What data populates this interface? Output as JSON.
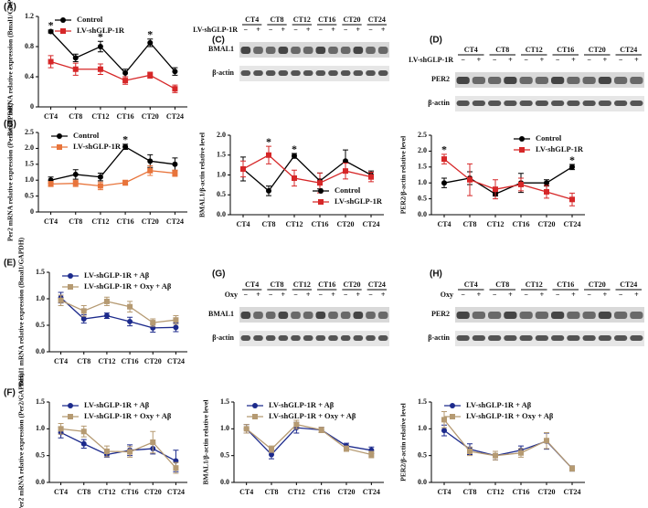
{
  "chart_data": [
    {
      "type": "line",
      "label": "(A)",
      "ylabel": "Bmal1 mRNA relative expression (Bmal1/GAPDH)",
      "categories": [
        "CT4",
        "CT8",
        "CT12",
        "CT16",
        "CT20",
        "CT24"
      ],
      "ylim": [
        0,
        1.2
      ],
      "yticks": [
        0,
        0.4,
        0.8,
        1.2
      ],
      "legend": "upper center",
      "series": [
        {
          "name": "Control",
          "color": "#000000",
          "marker": "circle",
          "values": [
            1.0,
            0.65,
            0.8,
            0.45,
            0.85,
            0.47
          ],
          "errors": [
            0.02,
            0.05,
            0.07,
            0.05,
            0.05,
            0.05
          ]
        },
        {
          "name": "LV-shGLP-1R",
          "color": "#d62728",
          "marker": "square",
          "values": [
            0.6,
            0.5,
            0.5,
            0.35,
            0.42,
            0.24
          ],
          "errors": [
            0.08,
            0.08,
            0.07,
            0.05,
            0.04,
            0.05
          ]
        }
      ],
      "significance": [
        "*",
        null,
        "*",
        null,
        "*",
        null
      ]
    },
    {
      "type": "line",
      "label": "(B)",
      "ylabel": "Per2 mRNA relative expression (Per2/GAPDH)",
      "categories": [
        "CT4",
        "CT8",
        "CT12",
        "CT16",
        "CT20",
        "CT24"
      ],
      "ylim": [
        0,
        2.5
      ],
      "yticks": [
        0,
        0.5,
        {
          "value": 1,
          "label": "1.0"
        },
        1.5,
        {
          "value": 2,
          "label": "2.0"
        },
        2.5
      ],
      "legend": "upper left",
      "series": [
        {
          "name": "Control",
          "color": "#000000",
          "marker": "circle",
          "values": [
            1.0,
            1.18,
            1.1,
            2.05,
            1.6,
            1.5
          ],
          "errors": [
            0.1,
            0.15,
            0.12,
            0.08,
            0.2,
            0.2
          ]
        },
        {
          "name": "LV-shGLP-1R",
          "color": "#e8743b",
          "marker": "square",
          "values": [
            0.88,
            0.9,
            0.82,
            0.92,
            1.3,
            1.22
          ],
          "errors": [
            0.08,
            0.1,
            0.12,
            0.08,
            0.15,
            0.1
          ]
        }
      ],
      "significance": [
        null,
        null,
        null,
        "*",
        null,
        null
      ]
    },
    {
      "type": "line",
      "ylabel": "BMAL1/β-actin relative level",
      "categories": [
        "CT4",
        "CT8",
        "CT12",
        "CT16",
        "CT20",
        "CT24"
      ],
      "ylim": [
        0,
        2
      ],
      "yticks": [
        {
          "value": 0,
          "label": "0.0"
        },
        0.5,
        {
          "value": 1,
          "label": "1.0"
        },
        1.5,
        {
          "value": 2,
          "label": "2.0"
        }
      ],
      "legend": "lower right",
      "series": [
        {
          "name": "Control",
          "color": "#000000",
          "marker": "circle",
          "values": [
            1.15,
            0.6,
            1.48,
            0.85,
            1.35,
            1.0
          ],
          "errors": [
            0.3,
            0.12,
            0.06,
            0.2,
            0.28,
            0.1
          ]
        },
        {
          "name": "LV-shGLP-1R",
          "color": "#d62728",
          "marker": "square",
          "values": [
            1.15,
            1.5,
            0.92,
            0.8,
            1.1,
            0.95
          ],
          "errors": [
            0.2,
            0.22,
            0.2,
            0.25,
            0.2,
            0.12
          ]
        }
      ],
      "significance": [
        null,
        "*",
        "*",
        null,
        null,
        null
      ]
    },
    {
      "type": "line",
      "ylabel": "PER2/β-actin relative level",
      "categories": [
        "CT4",
        "CT8",
        "CT12",
        "CT16",
        "CT20",
        "CT24"
      ],
      "ylim": [
        0,
        2.5
      ],
      "yticks": [
        {
          "value": 0,
          "label": "0.0"
        },
        0.5,
        {
          "value": 1,
          "label": "1.0"
        },
        1.5,
        {
          "value": 2,
          "label": "2.0"
        },
        2.5
      ],
      "legend": "upper right",
      "series": [
        {
          "name": "Control",
          "color": "#000000",
          "marker": "circle",
          "values": [
            1.0,
            1.15,
            0.65,
            1.0,
            1.0,
            1.5
          ],
          "errors": [
            0.15,
            0.2,
            0.06,
            0.3,
            0.1,
            0.08
          ]
        },
        {
          "name": "LV-shGLP-1R",
          "color": "#d62728",
          "marker": "square",
          "values": [
            1.75,
            1.1,
            0.8,
            0.95,
            0.72,
            0.48
          ],
          "errors": [
            0.15,
            0.5,
            0.3,
            0.2,
            0.2,
            0.2
          ]
        }
      ],
      "significance": [
        "*",
        null,
        null,
        null,
        null,
        "*"
      ]
    },
    {
      "type": "line",
      "label": "(E)",
      "ylabel": "Bmal1 mRNA relative expression (Bmal1/GAPDH)",
      "categories": [
        "CT4",
        "CT8",
        "CT12",
        "CT16",
        "CT20",
        "CT24"
      ],
      "ylim": [
        0,
        1.5
      ],
      "yticks": [
        {
          "value": 0,
          "label": "0.0"
        },
        0.5,
        {
          "value": 1,
          "label": "1.0"
        },
        1.5
      ],
      "legend": "upper left",
      "series": [
        {
          "name": "LV-shGLP-1R + Aβ",
          "color": "#1c2a8c",
          "marker": "circle",
          "values": [
            1.02,
            0.62,
            0.68,
            0.57,
            0.45,
            0.46
          ],
          "errors": [
            0.1,
            0.08,
            0.05,
            0.08,
            0.08,
            0.08
          ]
        },
        {
          "name": "LV-shGLP-1R + Oxy + Aβ",
          "color": "#b59a72",
          "marker": "square",
          "values": [
            0.97,
            0.77,
            0.95,
            0.85,
            0.55,
            0.6
          ],
          "errors": [
            0.1,
            0.1,
            0.08,
            0.1,
            0.07,
            0.08
          ]
        }
      ]
    },
    {
      "type": "line",
      "label": "(F)",
      "ylabel": "Per2 mRNA relative expression (Per2/GAPDH)",
      "categories": [
        "CT4",
        "CT8",
        "CT12",
        "CT16",
        "CT20",
        "CT24"
      ],
      "ylim": [
        0,
        1.5
      ],
      "yticks": [
        {
          "value": 0,
          "label": "0.0"
        },
        0.5,
        {
          "value": 1,
          "label": "1.0"
        },
        1.5
      ],
      "legend": "upper left",
      "series": [
        {
          "name": "LV-shGLP-1R + Aβ",
          "color": "#1c2a8c",
          "marker": "circle",
          "values": [
            0.93,
            0.72,
            0.52,
            0.6,
            0.63,
            0.4
          ],
          "errors": [
            0.1,
            0.08,
            0.05,
            0.1,
            0.1,
            0.2
          ]
        },
        {
          "name": "LV-shGLP-1R + Oxy + Aβ",
          "color": "#b59a72",
          "marker": "square",
          "values": [
            1.0,
            0.95,
            0.58,
            0.57,
            0.75,
            0.27
          ],
          "errors": [
            0.1,
            0.1,
            0.1,
            0.1,
            0.2,
            0.1
          ]
        }
      ]
    },
    {
      "type": "line",
      "ylabel": "BMAL1/β-actin relative level",
      "categories": [
        "CT4",
        "CT8",
        "CT12",
        "CT16",
        "CT20",
        "CT24"
      ],
      "ylim": [
        0,
        1.5
      ],
      "yticks": [
        {
          "value": 0,
          "label": "0.0"
        },
        0.5,
        {
          "value": 1,
          "label": "1.0"
        },
        1.5
      ],
      "legend": "upper left",
      "series": [
        {
          "name": "LV-shGLP-1R + Aβ",
          "color": "#1c2a8c",
          "marker": "circle",
          "values": [
            1.0,
            0.52,
            1.02,
            0.98,
            0.68,
            0.6
          ],
          "errors": [
            0.08,
            0.08,
            0.1,
            0.05,
            0.05,
            0.06
          ]
        },
        {
          "name": "LV-shGLP-1R + Oxy + Aβ",
          "color": "#b59a72",
          "marker": "square",
          "values": [
            1.0,
            0.62,
            1.08,
            0.98,
            0.63,
            0.52
          ],
          "errors": [
            0.08,
            0.06,
            0.08,
            0.05,
            0.05,
            0.06
          ]
        }
      ]
    },
    {
      "type": "line",
      "ylabel": "PER2/β-actin relative level",
      "categories": [
        "CT4",
        "CT8",
        "CT12",
        "CT16",
        "CT20",
        "CT24"
      ],
      "ylim": [
        0,
        1.5
      ],
      "yticks": [
        {
          "value": 0,
          "label": "0.0"
        },
        0.5,
        {
          "value": 1,
          "label": "1.0"
        },
        1.5
      ],
      "legend": "upper left",
      "series": [
        {
          "name": "LV-shGLP-1R + Aβ",
          "color": "#1c2a8c",
          "marker": "circle",
          "values": [
            0.97,
            0.62,
            0.5,
            0.6,
            0.77,
            0.26
          ],
          "errors": [
            0.1,
            0.1,
            0.08,
            0.08,
            0.15,
            0.05
          ]
        },
        {
          "name": "LV-shGLP-1R + Oxy + Aβ",
          "color": "#b59a72",
          "marker": "square",
          "values": [
            1.17,
            0.58,
            0.5,
            0.55,
            0.78,
            0.26
          ],
          "errors": [
            0.15,
            0.08,
            0.08,
            0.08,
            0.15,
            0.05
          ]
        }
      ]
    }
  ],
  "blots": [
    {
      "label": "(C)",
      "columns": [
        "CT4",
        "CT8",
        "CT12",
        "CT16",
        "CT20",
        "CT24"
      ],
      "treatment": "LV-shGLP-1R",
      "signs": [
        "−",
        "+",
        "−",
        "+",
        "−",
        "+",
        "−",
        "+",
        "−",
        "+",
        "−",
        "+"
      ],
      "rows": [
        "BMAL1",
        "β-actin"
      ]
    },
    {
      "label": "(D)",
      "columns": [
        "CT4",
        "CT8",
        "CT12",
        "CT16",
        "CT20",
        "CT24"
      ],
      "treatment": "LV-shGLP-1R",
      "signs": [
        "−",
        "+",
        "−",
        "+",
        "−",
        "+",
        "−",
        "+",
        "−",
        "+",
        "−",
        "+"
      ],
      "rows": [
        "PER2",
        "β-actin"
      ]
    },
    {
      "label": "(G)",
      "columns": [
        "CT4",
        "CT8",
        "CT12",
        "CT16",
        "CT20",
        "CT24"
      ],
      "treatment": "Oxy",
      "signs": [
        "−",
        "+",
        "−",
        "+",
        "−",
        "+",
        "−",
        "+",
        "−",
        "+",
        "−",
        "+"
      ],
      "rows": [
        "BMAL1",
        "β-actin"
      ]
    },
    {
      "label": "(H)",
      "columns": [
        "CT4",
        "CT8",
        "CT12",
        "CT16",
        "CT20",
        "CT24"
      ],
      "treatment": "Oxy",
      "signs": [
        "−",
        "+",
        "−",
        "+",
        "−",
        "+",
        "−",
        "+",
        "−",
        "+",
        "−",
        "+"
      ],
      "rows": [
        "PER2",
        "β-actin"
      ]
    }
  ]
}
